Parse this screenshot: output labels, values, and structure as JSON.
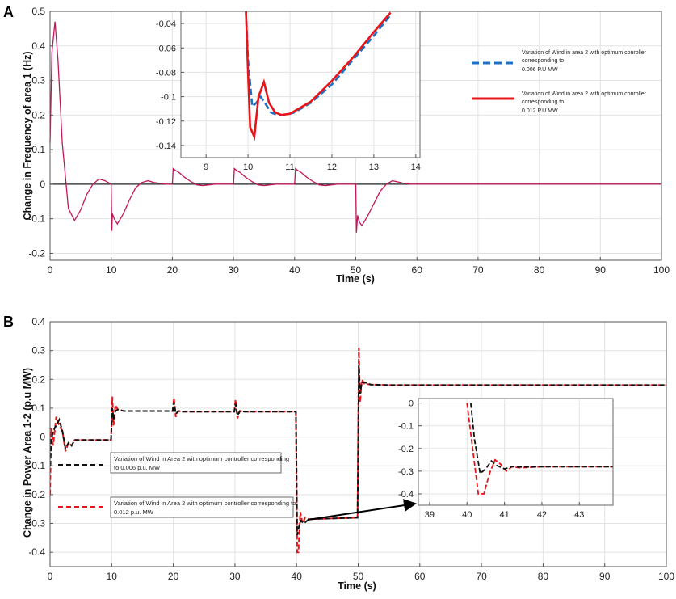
{
  "panels": {
    "a": {
      "letter": "A"
    },
    "b": {
      "letter": "B"
    }
  },
  "chart_data": [
    {
      "id": "A",
      "type": "line",
      "xlabel": "Time (s)",
      "ylabel": "Change in Frequency of area 1 (Hz)",
      "xlim": [
        0,
        100
      ],
      "ylim": [
        -0.22,
        0.5
      ],
      "xticks": [
        0,
        10,
        20,
        30,
        40,
        50,
        60,
        70,
        80,
        90,
        100
      ],
      "yticks": [
        -0.2,
        -0.1,
        0,
        0.1,
        0.2,
        0.3,
        0.4,
        0.5
      ],
      "ytick_labels": [
        "-0.2",
        "-0.1",
        "0",
        "0.1",
        "0.2",
        "0.3",
        "0.4",
        "0.5"
      ],
      "grid": true,
      "zero_line": true,
      "colors": {
        "trace": "#c2185b",
        "series1": "#1f6fc2",
        "series2": "#e8141a"
      },
      "series": [
        {
          "x": [
            0,
            0.3,
            0.8,
            1.3,
            2,
            3,
            4,
            5,
            6,
            7,
            8,
            9,
            10
          ],
          "y": [
            0.12,
            0.38,
            0.47,
            0.36,
            0.12,
            -0.07,
            -0.105,
            -0.075,
            -0.03,
            0,
            0.015,
            0.01,
            0
          ]
        },
        {
          "x": [
            10,
            10.1,
            10.2,
            10.5,
            11,
            12,
            13,
            14,
            15,
            16,
            17,
            18,
            19,
            20
          ],
          "y": [
            0,
            -0.135,
            -0.085,
            -0.1,
            -0.115,
            -0.085,
            -0.045,
            -0.01,
            0.005,
            0.01,
            0.005,
            0.002,
            0,
            0
          ]
        },
        {
          "x": [
            20,
            20.15,
            20.5,
            21,
            22,
            23,
            24,
            25,
            26,
            27,
            28,
            30
          ],
          "y": [
            0,
            0.045,
            0.04,
            0.035,
            0.02,
            0.008,
            -0.002,
            -0.004,
            -0.002,
            0,
            0,
            0
          ]
        },
        {
          "x": [
            30,
            30.15,
            30.5,
            31,
            32,
            33,
            34,
            35,
            36,
            37,
            38,
            40
          ],
          "y": [
            0,
            0.045,
            0.04,
            0.035,
            0.02,
            0.008,
            -0.002,
            -0.004,
            -0.002,
            0,
            0,
            0
          ]
        },
        {
          "x": [
            40,
            40.15,
            40.5,
            41,
            42,
            43,
            44,
            45,
            46,
            47,
            48,
            50
          ],
          "y": [
            0,
            0.045,
            0.04,
            0.035,
            0.02,
            0.008,
            -0.002,
            -0.004,
            -0.002,
            0,
            0,
            0
          ]
        },
        {
          "x": [
            50,
            50.1,
            50.3,
            50.6,
            51,
            52,
            53,
            54,
            55,
            56,
            57,
            58,
            59,
            60
          ],
          "y": [
            0,
            -0.14,
            -0.09,
            -0.11,
            -0.12,
            -0.09,
            -0.055,
            -0.02,
            0,
            0.01,
            0.006,
            0.002,
            0,
            0
          ]
        },
        {
          "x": [
            60,
            100
          ],
          "y": [
            0,
            0
          ]
        }
      ],
      "inset": {
        "xlim": [
          8.4,
          14.1
        ],
        "ylim": [
          -0.15,
          -0.03
        ],
        "xticks": [
          9,
          10,
          11,
          12,
          13,
          14
        ],
        "yticks": [
          -0.14,
          -0.12,
          -0.1,
          -0.08,
          -0.06,
          -0.04
        ],
        "ytick_labels": [
          "-0.14",
          "-0.12",
          "-0.1",
          "-0.08",
          "-0.06",
          "-0.04"
        ],
        "series": [
          {
            "name": "Variation of Wind in area 2 with optimum conroller corresponding to 0.006 P.U MW",
            "style": "dashed",
            "x": [
              9.95,
              10.0,
              10.1,
              10.2,
              10.3,
              10.4,
              10.55,
              10.7,
              10.9,
              11.1,
              11.5,
              12.0,
              12.5,
              13.0,
              13.4
            ],
            "y": [
              -0.03,
              -0.07,
              -0.108,
              -0.105,
              -0.1,
              -0.105,
              -0.113,
              -0.115,
              -0.115,
              -0.113,
              -0.105,
              -0.09,
              -0.07,
              -0.05,
              -0.033
            ]
          },
          {
            "name": "Variation of Wind in area 2 with optimum conroller corresponding to 0.012 P.U MW",
            "style": "solid",
            "x": [
              9.95,
              10.0,
              10.05,
              10.15,
              10.25,
              10.38,
              10.5,
              10.65,
              10.8,
              11.0,
              11.5,
              12.0,
              12.5,
              13.0,
              13.4
            ],
            "y": [
              -0.03,
              -0.08,
              -0.125,
              -0.133,
              -0.1,
              -0.088,
              -0.105,
              -0.113,
              -0.115,
              -0.114,
              -0.104,
              -0.087,
              -0.068,
              -0.047,
              -0.031
            ]
          }
        ]
      },
      "legend": [
        {
          "line1": "Variation of Wind in area 2 with optimum conroller",
          "line2": "corresponding to",
          "line3": "0.006 P.U MW"
        },
        {
          "line1": "Variation of Wind in area 2 with optimum conroller",
          "line2": "corresponding to",
          "line3": "0.012 P.U MW"
        }
      ]
    },
    {
      "id": "B",
      "type": "line",
      "xlabel": "Time (s)",
      "ylabel": "Change in Power Area 1-2 (p.u MW)",
      "xlim": [
        0,
        100
      ],
      "ylim": [
        -0.45,
        0.4
      ],
      "xticks": [
        0,
        10,
        20,
        30,
        40,
        50,
        60,
        70,
        80,
        90,
        100
      ],
      "yticks": [
        -0.4,
        -0.3,
        -0.2,
        -0.1,
        0,
        0.1,
        0.2,
        0.3,
        0.4
      ],
      "ytick_labels": [
        "-0.4",
        "-0.3",
        "-0.2",
        "-0.1",
        "0",
        "0.1",
        "0.2",
        "0.3",
        "0.4"
      ],
      "grid": true,
      "colors": {
        "series1": "#111111",
        "series2": "#e8141a"
      },
      "series": [
        {
          "name": "Variation of Wind in Area 2 with optimum controller corresponding to 0.006 p.u. MW",
          "style": "dashed",
          "x": [
            0,
            0.2,
            0.5,
            1,
            1.5,
            2,
            2.5,
            3,
            3.5,
            4,
            5,
            6,
            8,
            9.9,
            10.1,
            10.3,
            10.6,
            11,
            12,
            15,
            19.9,
            20.1,
            20.4,
            20.8,
            21.5,
            25,
            29.9,
            30.1,
            30.4,
            30.8,
            31.5,
            35,
            39.9,
            40.1,
            40.4,
            40.7,
            41.2,
            42,
            45,
            49.9,
            50.1,
            50.3,
            50.6,
            51,
            52,
            55,
            60,
            100
          ],
          "y": [
            -0.1,
            -0.01,
            0.02,
            0.04,
            0.06,
            0.02,
            -0.04,
            -0.02,
            -0.03,
            -0.01,
            -0.01,
            -0.01,
            -0.01,
            -0.01,
            0.1,
            0.06,
            0.09,
            0.095,
            0.09,
            0.09,
            0.09,
            0.12,
            0.08,
            0.09,
            0.088,
            0.088,
            0.088,
            0.115,
            0.075,
            0.09,
            0.088,
            0.088,
            0.088,
            -0.34,
            -0.31,
            -0.29,
            -0.3,
            -0.285,
            -0.283,
            -0.28,
            0.25,
            0.15,
            0.19,
            0.19,
            0.182,
            0.18,
            0.18,
            0.18
          ]
        },
        {
          "name": "Variation of Wind in Area 2 with optimum controller corresponding to 0.012 p.u. MW",
          "style": "dashed",
          "x": [
            0,
            0.2,
            0.5,
            1,
            1.5,
            2,
            2.5,
            3,
            3.5,
            4,
            5,
            6,
            8,
            9.9,
            10.1,
            10.3,
            10.6,
            11,
            12,
            15,
            19.9,
            20.1,
            20.4,
            20.8,
            21.5,
            25,
            29.9,
            30.1,
            30.4,
            30.8,
            31.5,
            35,
            39.9,
            40.1,
            40.3,
            40.6,
            41,
            41.4,
            42,
            45,
            49.9,
            50.1,
            50.3,
            50.6,
            51,
            52,
            55,
            60,
            100
          ],
          "y": [
            -0.2,
            0.03,
            -0.03,
            0.07,
            0.04,
            0.02,
            -0.05,
            -0.02,
            -0.03,
            -0.01,
            -0.01,
            -0.01,
            -0.01,
            -0.01,
            0.14,
            0.04,
            0.11,
            0.095,
            0.09,
            0.09,
            0.09,
            0.135,
            0.07,
            0.09,
            0.088,
            0.088,
            0.088,
            0.13,
            0.065,
            0.09,
            0.088,
            0.088,
            0.088,
            -0.4,
            -0.4,
            -0.26,
            -0.3,
            -0.28,
            -0.285,
            -0.283,
            -0.28,
            0.31,
            0.12,
            0.2,
            0.185,
            0.182,
            0.18,
            0.18,
            0.18
          ]
        }
      ],
      "inset": {
        "xlim": [
          38.7,
          43.9
        ],
        "ylim": [
          -0.45,
          0.02
        ],
        "xticks": [
          39,
          40,
          41,
          42,
          43
        ],
        "yticks": [
          -0.4,
          -0.3,
          -0.2,
          -0.1,
          0
        ],
        "ytick_labels": [
          "-0.4",
          "-0.3",
          "-0.2",
          "-0.1",
          "0"
        ],
        "series": [
          {
            "x": [
              40.1,
              40.2,
              40.35,
              40.5,
              40.65,
              40.8,
              41.0,
              41.2,
              41.4,
              42,
              43.9
            ],
            "y": [
              0.0,
              -0.16,
              -0.31,
              -0.29,
              -0.255,
              -0.275,
              -0.29,
              -0.28,
              -0.282,
              -0.28,
              -0.28
            ]
          },
          {
            "x": [
              40.0,
              40.15,
              40.3,
              40.45,
              40.6,
              40.75,
              40.9,
              41.05,
              41.2,
              41.4,
              42,
              43.9
            ],
            "y": [
              0.0,
              -0.2,
              -0.4,
              -0.4,
              -0.31,
              -0.25,
              -0.27,
              -0.3,
              -0.28,
              -0.285,
              -0.28,
              -0.28
            ]
          }
        ]
      },
      "legend": [
        {
          "line1": "Variation of Wind in Area 2 with optimum controller corresponding",
          "line2": "to 0.006 p.u. MW"
        },
        {
          "line1": "Variation of Wind in Area 2 with optimum controller corresponding to",
          "line2": "0.012 p.u. MW"
        }
      ]
    }
  ]
}
